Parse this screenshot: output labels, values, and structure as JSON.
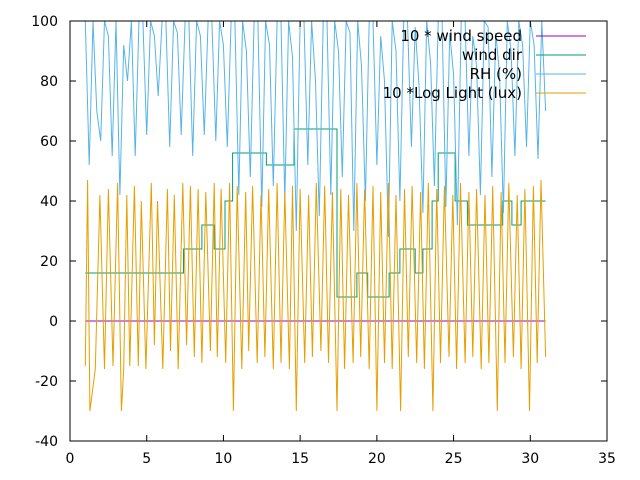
{
  "chart_data": {
    "type": "line",
    "title": "",
    "xlabel": "",
    "ylabel": "",
    "xlim": [
      0,
      35
    ],
    "ylim": [
      -40,
      100
    ],
    "xticks": [
      0,
      5,
      10,
      15,
      20,
      25,
      30,
      35
    ],
    "yticks": [
      -40,
      -20,
      0,
      20,
      40,
      60,
      80,
      100
    ],
    "grid": false,
    "legend_position": "top-right",
    "series": [
      {
        "name": "10 * wind speed",
        "color": "#9400d3",
        "x": [
          1,
          31
        ],
        "y": [
          0,
          0
        ]
      },
      {
        "name": "wind dir",
        "color": "#009e73",
        "x": [
          1,
          7.4,
          7.4,
          8.6,
          8.6,
          9.4,
          9.4,
          10.1,
          10.1,
          10.6,
          10.6,
          12.8,
          12.8,
          14.6,
          14.6,
          17.4,
          17.4,
          18.1,
          18.1,
          18.7,
          18.7,
          19.4,
          19.4,
          20.8,
          20.8,
          21.5,
          21.5,
          22.5,
          22.5,
          23.0,
          23.0,
          23.6,
          23.6,
          24.0,
          24.0,
          25.1,
          25.1,
          25.9,
          25.9,
          28.2,
          28.2,
          28.8,
          28.8,
          29.4,
          29.4,
          31
        ],
        "y": [
          16,
          16,
          24,
          24,
          32,
          32,
          24,
          24,
          40,
          40,
          56,
          56,
          52,
          52,
          64,
          64,
          8,
          8,
          8,
          8,
          16,
          16,
          8,
          8,
          16,
          16,
          24,
          24,
          16,
          16,
          24,
          24,
          40,
          40,
          56,
          56,
          40,
          40,
          32,
          32,
          40,
          40,
          32,
          32,
          40,
          40
        ]
      },
      {
        "name": "RH (%)",
        "color": "#56b4e9",
        "x": [
          1,
          1.25,
          1.5,
          1.75,
          2,
          2.25,
          2.5,
          2.75,
          3,
          3.25,
          3.5,
          3.75,
          4,
          4.25,
          4.5,
          4.75,
          5,
          5.25,
          5.5,
          5.75,
          6,
          6.25,
          6.5,
          6.75,
          7,
          7.25,
          7.5,
          7.75,
          8,
          8.25,
          8.5,
          8.75,
          9,
          9.25,
          9.5,
          9.75,
          10,
          10.25,
          10.5,
          10.75,
          11,
          11.25,
          11.5,
          11.75,
          12,
          12.25,
          12.5,
          12.75,
          13,
          13.25,
          13.5,
          13.75,
          14,
          14.25,
          14.5,
          14.75,
          15,
          15.25,
          15.5,
          15.75,
          16,
          16.25,
          16.5,
          16.75,
          17,
          17.25,
          17.5,
          17.75,
          18,
          18.25,
          18.5,
          18.75,
          19,
          19.25,
          19.5,
          19.75,
          20,
          20.25,
          20.5,
          20.75,
          21,
          21.25,
          21.5,
          21.75,
          22,
          22.25,
          22.5,
          22.75,
          23,
          23.25,
          23.5,
          23.75,
          24,
          24.25,
          24.5,
          24.75,
          25,
          25.25,
          25.5,
          25.75,
          26,
          26.25,
          26.5,
          26.75,
          27,
          27.25,
          27.5,
          27.75,
          28,
          28.25,
          28.5,
          28.75,
          29,
          29.25,
          29.5,
          29.75,
          30,
          30.25,
          30.5,
          30.75,
          31
        ],
        "y": [
          100,
          52,
          100,
          70,
          60,
          100,
          95,
          55,
          100,
          42,
          92,
          80,
          100,
          55,
          100,
          100,
          62,
          100,
          95,
          75,
          100,
          100,
          58,
          100,
          96,
          62,
          100,
          100,
          55,
          100,
          95,
          62,
          100,
          100,
          60,
          100,
          92,
          58,
          100,
          100,
          42,
          100,
          90,
          48,
          100,
          100,
          38,
          100,
          92,
          45,
          100,
          100,
          40,
          100,
          88,
          30,
          100,
          100,
          52,
          100,
          80,
          35,
          100,
          100,
          42,
          100,
          90,
          48,
          100,
          96,
          30,
          100,
          85,
          40,
          100,
          100,
          52,
          95,
          80,
          28,
          100,
          90,
          40,
          100,
          100,
          58,
          98,
          78,
          36,
          100,
          86,
          45,
          100,
          100,
          38,
          96,
          82,
          32,
          100,
          100,
          55,
          95,
          85,
          42,
          100,
          98,
          48,
          96,
          82,
          36,
          100,
          90,
          55,
          100,
          92,
          58,
          100,
          92,
          54,
          100,
          70
        ]
      },
      {
        "name": "10 *Log Light (lux)",
        "color": "#e69f00",
        "x": [
          1,
          1.15,
          1.3,
          1.65,
          1.95,
          2.25,
          2.5,
          2.8,
          3.1,
          3.35,
          3.5,
          3.7,
          3.9,
          4.2,
          4.45,
          4.65,
          4.95,
          5.3,
          5.5,
          5.7,
          6.05,
          6.35,
          6.55,
          6.8,
          7.05,
          7.35,
          7.6,
          7.85,
          8.1,
          8.35,
          8.6,
          8.85,
          9.15,
          9.4,
          9.6,
          9.85,
          10.15,
          10.4,
          10.65,
          10.9,
          11.2,
          11.45,
          11.65,
          11.9,
          12.2,
          12.45,
          12.7,
          12.95,
          13.25,
          13.5,
          13.75,
          14.0,
          14.3,
          14.5,
          14.75,
          15.0,
          15.3,
          15.55,
          15.8,
          16.05,
          16.35,
          16.6,
          16.85,
          17.1,
          17.4,
          17.65,
          17.9,
          18.15,
          18.45,
          18.7,
          18.95,
          19.2,
          19.5,
          19.75,
          20.0,
          20.25,
          20.5,
          20.75,
          21.0,
          21.25,
          21.55,
          21.8,
          22.05,
          22.3,
          22.6,
          22.85,
          23.1,
          23.35,
          23.65,
          23.9,
          24.15,
          24.4,
          24.7,
          24.95,
          25.2,
          25.45,
          25.75,
          26.0,
          26.25,
          26.5,
          26.8,
          27.05,
          27.3,
          27.55,
          27.85,
          28.1,
          28.35,
          28.6,
          28.9,
          29.15,
          29.4,
          29.65,
          29.95,
          30.2,
          30.45,
          30.7,
          31
        ],
        "y": [
          -15,
          47,
          -30,
          -16,
          42,
          -16,
          44,
          -15,
          46,
          -30,
          -16,
          42,
          -15,
          45,
          -15,
          40,
          -16,
          46,
          -8,
          40,
          -16,
          44,
          -10,
          42,
          -16,
          46,
          -8,
          45,
          -12,
          44,
          -14,
          43,
          -10,
          46,
          -12,
          44,
          -14,
          46,
          -30,
          45,
          -16,
          43,
          -10,
          45,
          -14,
          42,
          -12,
          44,
          -16,
          46,
          -14,
          43,
          -16,
          45,
          -30,
          44,
          -14,
          42,
          -12,
          46,
          -10,
          45,
          -14,
          43,
          -30,
          44,
          -16,
          42,
          -14,
          46,
          -12,
          44,
          -16,
          45,
          -30,
          43,
          -14,
          46,
          -16,
          42,
          -30,
          44,
          -12,
          45,
          -14,
          43,
          -16,
          46,
          -30,
          44,
          -14,
          45,
          -12,
          42,
          -16,
          46,
          -14,
          43,
          -12,
          44,
          -16,
          42,
          -14,
          45,
          -30,
          43,
          -14,
          46,
          -12,
          42,
          -16,
          44,
          -30,
          45,
          -14,
          47,
          -12
        ]
      }
    ]
  }
}
